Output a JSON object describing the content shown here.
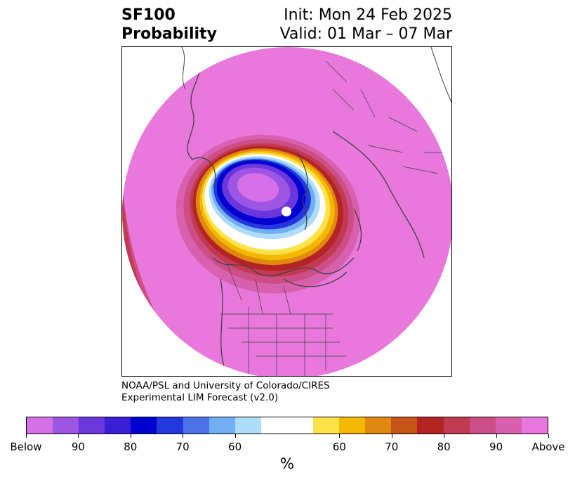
{
  "title": {
    "left_line1": "SF100",
    "left_line2": "Probability",
    "right_line1": "Init: Mon 24 Feb 2025",
    "right_line2": "Valid: 01 Mar – 07 Mar"
  },
  "credit": {
    "line1": "NOAA/PSL and University of Colorado/CIRES",
    "line2": "Experimental LIM Forecast (v2.0)"
  },
  "colorbar": {
    "unit": "%",
    "colors": [
      "#d670e8",
      "#9d55e3",
      "#6b36dc",
      "#3a1fd6",
      "#0000d0",
      "#2238dc",
      "#4c72e8",
      "#72aef2",
      "#aedcfb",
      "#ffffff",
      "#ffffff",
      "#ffe24a",
      "#f4b800",
      "#e08810",
      "#c65416",
      "#b42424",
      "#c23a52",
      "#cc4e86",
      "#d960ae",
      "#e878dc"
    ],
    "tick_labels": [
      "Below",
      "90",
      "80",
      "70",
      "60",
      "60",
      "70",
      "80",
      "90",
      "Above"
    ]
  },
  "map": {
    "background_color": "#e878dc",
    "border_color": "#404040"
  }
}
